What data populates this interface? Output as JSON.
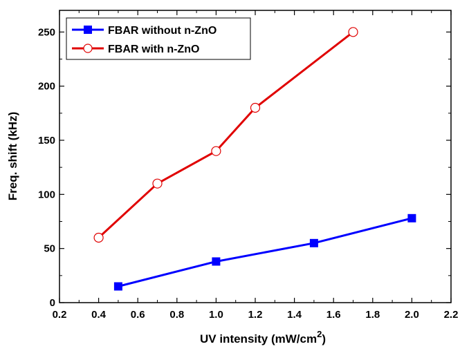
{
  "chart_data": {
    "type": "line",
    "xlabel": "UV intensity (mW/cm",
    "xlabel_superscript": "2",
    "xlabel_suffix": ")",
    "ylabel": "Freq. shift (kHz)",
    "xlim": [
      0.2,
      2.2
    ],
    "ylim": [
      0,
      270
    ],
    "x_ticks": [
      "0.2",
      "0.4",
      "0.6",
      "0.8",
      "1.0",
      "1.2",
      "1.4",
      "1.6",
      "1.8",
      "2.0",
      "2.2"
    ],
    "y_ticks": [
      "0",
      "50",
      "100",
      "150",
      "200",
      "250"
    ],
    "grid": false,
    "legend_position": "top-left",
    "series": [
      {
        "name": "FBAR without n-ZnO",
        "color": "#0000ff",
        "marker": "filled-square",
        "x": [
          0.5,
          1.0,
          1.5,
          2.0
        ],
        "y": [
          15,
          38,
          55,
          78
        ]
      },
      {
        "name": "FBAR with n-ZnO",
        "color": "#e00000",
        "marker": "open-circle",
        "x": [
          0.4,
          0.7,
          1.0,
          1.2,
          1.7
        ],
        "y": [
          60,
          110,
          140,
          180,
          250
        ]
      }
    ]
  }
}
